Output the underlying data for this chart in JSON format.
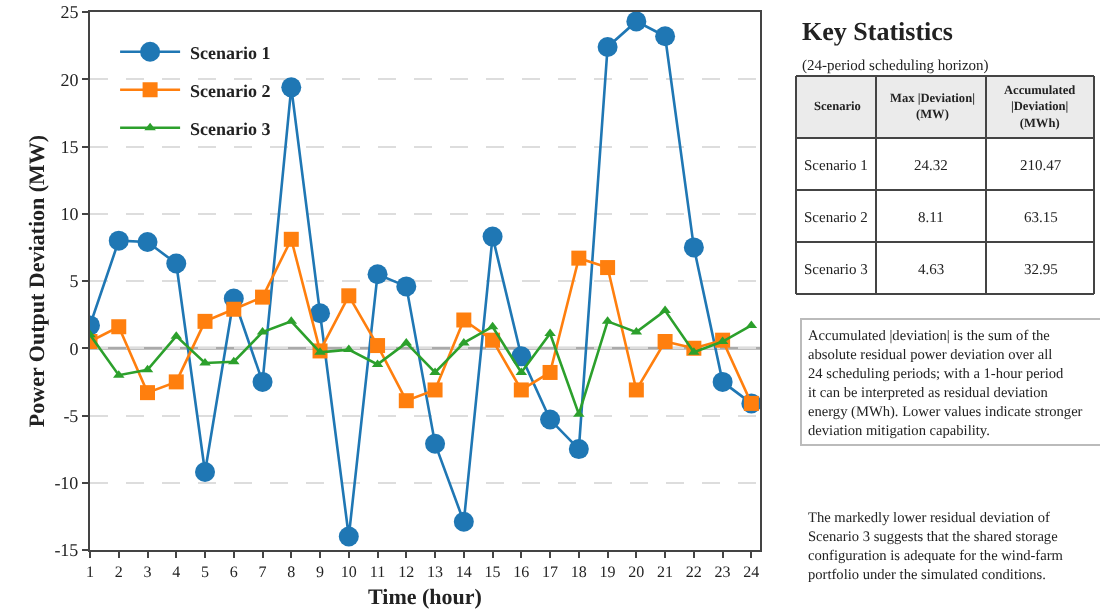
{
  "chart_data": [
    {
      "type": "line",
      "xlabel": "Time (hour)",
      "ylabel": "Power Output Deviation (MW)",
      "x": [
        1,
        2,
        3,
        4,
        5,
        6,
        7,
        8,
        9,
        10,
        11,
        12,
        13,
        14,
        15,
        16,
        17,
        18,
        19,
        20,
        21,
        22,
        23,
        24
      ],
      "series": [
        {
          "name": "Scenario 1",
          "color": "#1f77b4",
          "marker": "circle",
          "values": [
            1.7,
            8.0,
            7.9,
            6.3,
            -9.2,
            3.7,
            -2.5,
            19.4,
            2.6,
            -14.0,
            5.5,
            4.6,
            -7.1,
            -12.9,
            8.3,
            -0.6,
            -5.3,
            -7.5,
            22.4,
            24.3,
            23.2,
            7.5,
            -2.5,
            -4.1
          ]
        },
        {
          "name": "Scenario 2",
          "color": "#ff7f0e",
          "marker": "square",
          "values": [
            0.5,
            1.6,
            -3.3,
            -2.5,
            2.0,
            2.9,
            3.8,
            8.1,
            -0.2,
            3.9,
            0.2,
            -3.9,
            -3.1,
            2.1,
            0.6,
            -3.1,
            -1.8,
            6.7,
            6.0,
            -3.1,
            0.5,
            0.0,
            0.6,
            -4.1
          ]
        },
        {
          "name": "Scenario 3",
          "color": "#2ca02c",
          "marker": "triangle",
          "values": [
            1.0,
            -2.0,
            -1.6,
            0.9,
            -1.1,
            -1.0,
            1.2,
            2.0,
            -0.3,
            -0.1,
            -1.2,
            0.4,
            -1.8,
            0.4,
            1.6,
            -1.8,
            1.1,
            -4.9,
            2.0,
            1.2,
            2.8,
            -0.3,
            0.5,
            1.7
          ]
        }
      ],
      "xlim": [
        1,
        24.3
      ],
      "xticks": [
        1,
        2,
        3,
        4,
        5,
        6,
        7,
        8,
        9,
        10,
        11,
        12,
        13,
        14,
        15,
        16,
        17,
        18,
        19,
        20,
        21,
        22,
        23,
        24
      ],
      "ylim": [
        -15,
        25
      ],
      "yticks": [
        -15,
        -10,
        -5,
        0,
        5,
        10,
        15,
        20,
        25
      ],
      "ref_lines": [
        {
          "axis": "y",
          "value": 0,
          "color": "#aaaaaa"
        }
      ],
      "grid": "y",
      "legend": "top left",
      "line_style": "solid"
    },
    {
      "type": "other",
      "title": "Key Statistics",
      "subtitle": "(24-period scheduling horizon)",
      "legend_title": "Scenario",
      "categories": [
        "Scenario 1",
        "Scenario 2",
        "Scenario 3"
      ],
      "series": [
        {
          "name": "Max |Deviation| (MW)",
          "values": [
            24.32,
            8.11,
            4.63
          ]
        },
        {
          "name": "Accumulated |Deviation| (MWh)",
          "values": [
            210.47,
            63.15,
            32.95
          ]
        }
      ],
      "data_labels": true,
      "annotations": [
        "Accumulated |deviation| is the sum of the absolute residual power deviation over all 24 scheduling periods; with a 1-hour period it can be interpreted as residual deviation energy (MWh). Lower values indicate stronger deviation mitigation capability.",
        "The markedly lower residual deviation of Scenario 3 suggests that the shared storage configuration is adequate for the wind-farm portfolio under the simulated conditions."
      ]
    }
  ]
}
